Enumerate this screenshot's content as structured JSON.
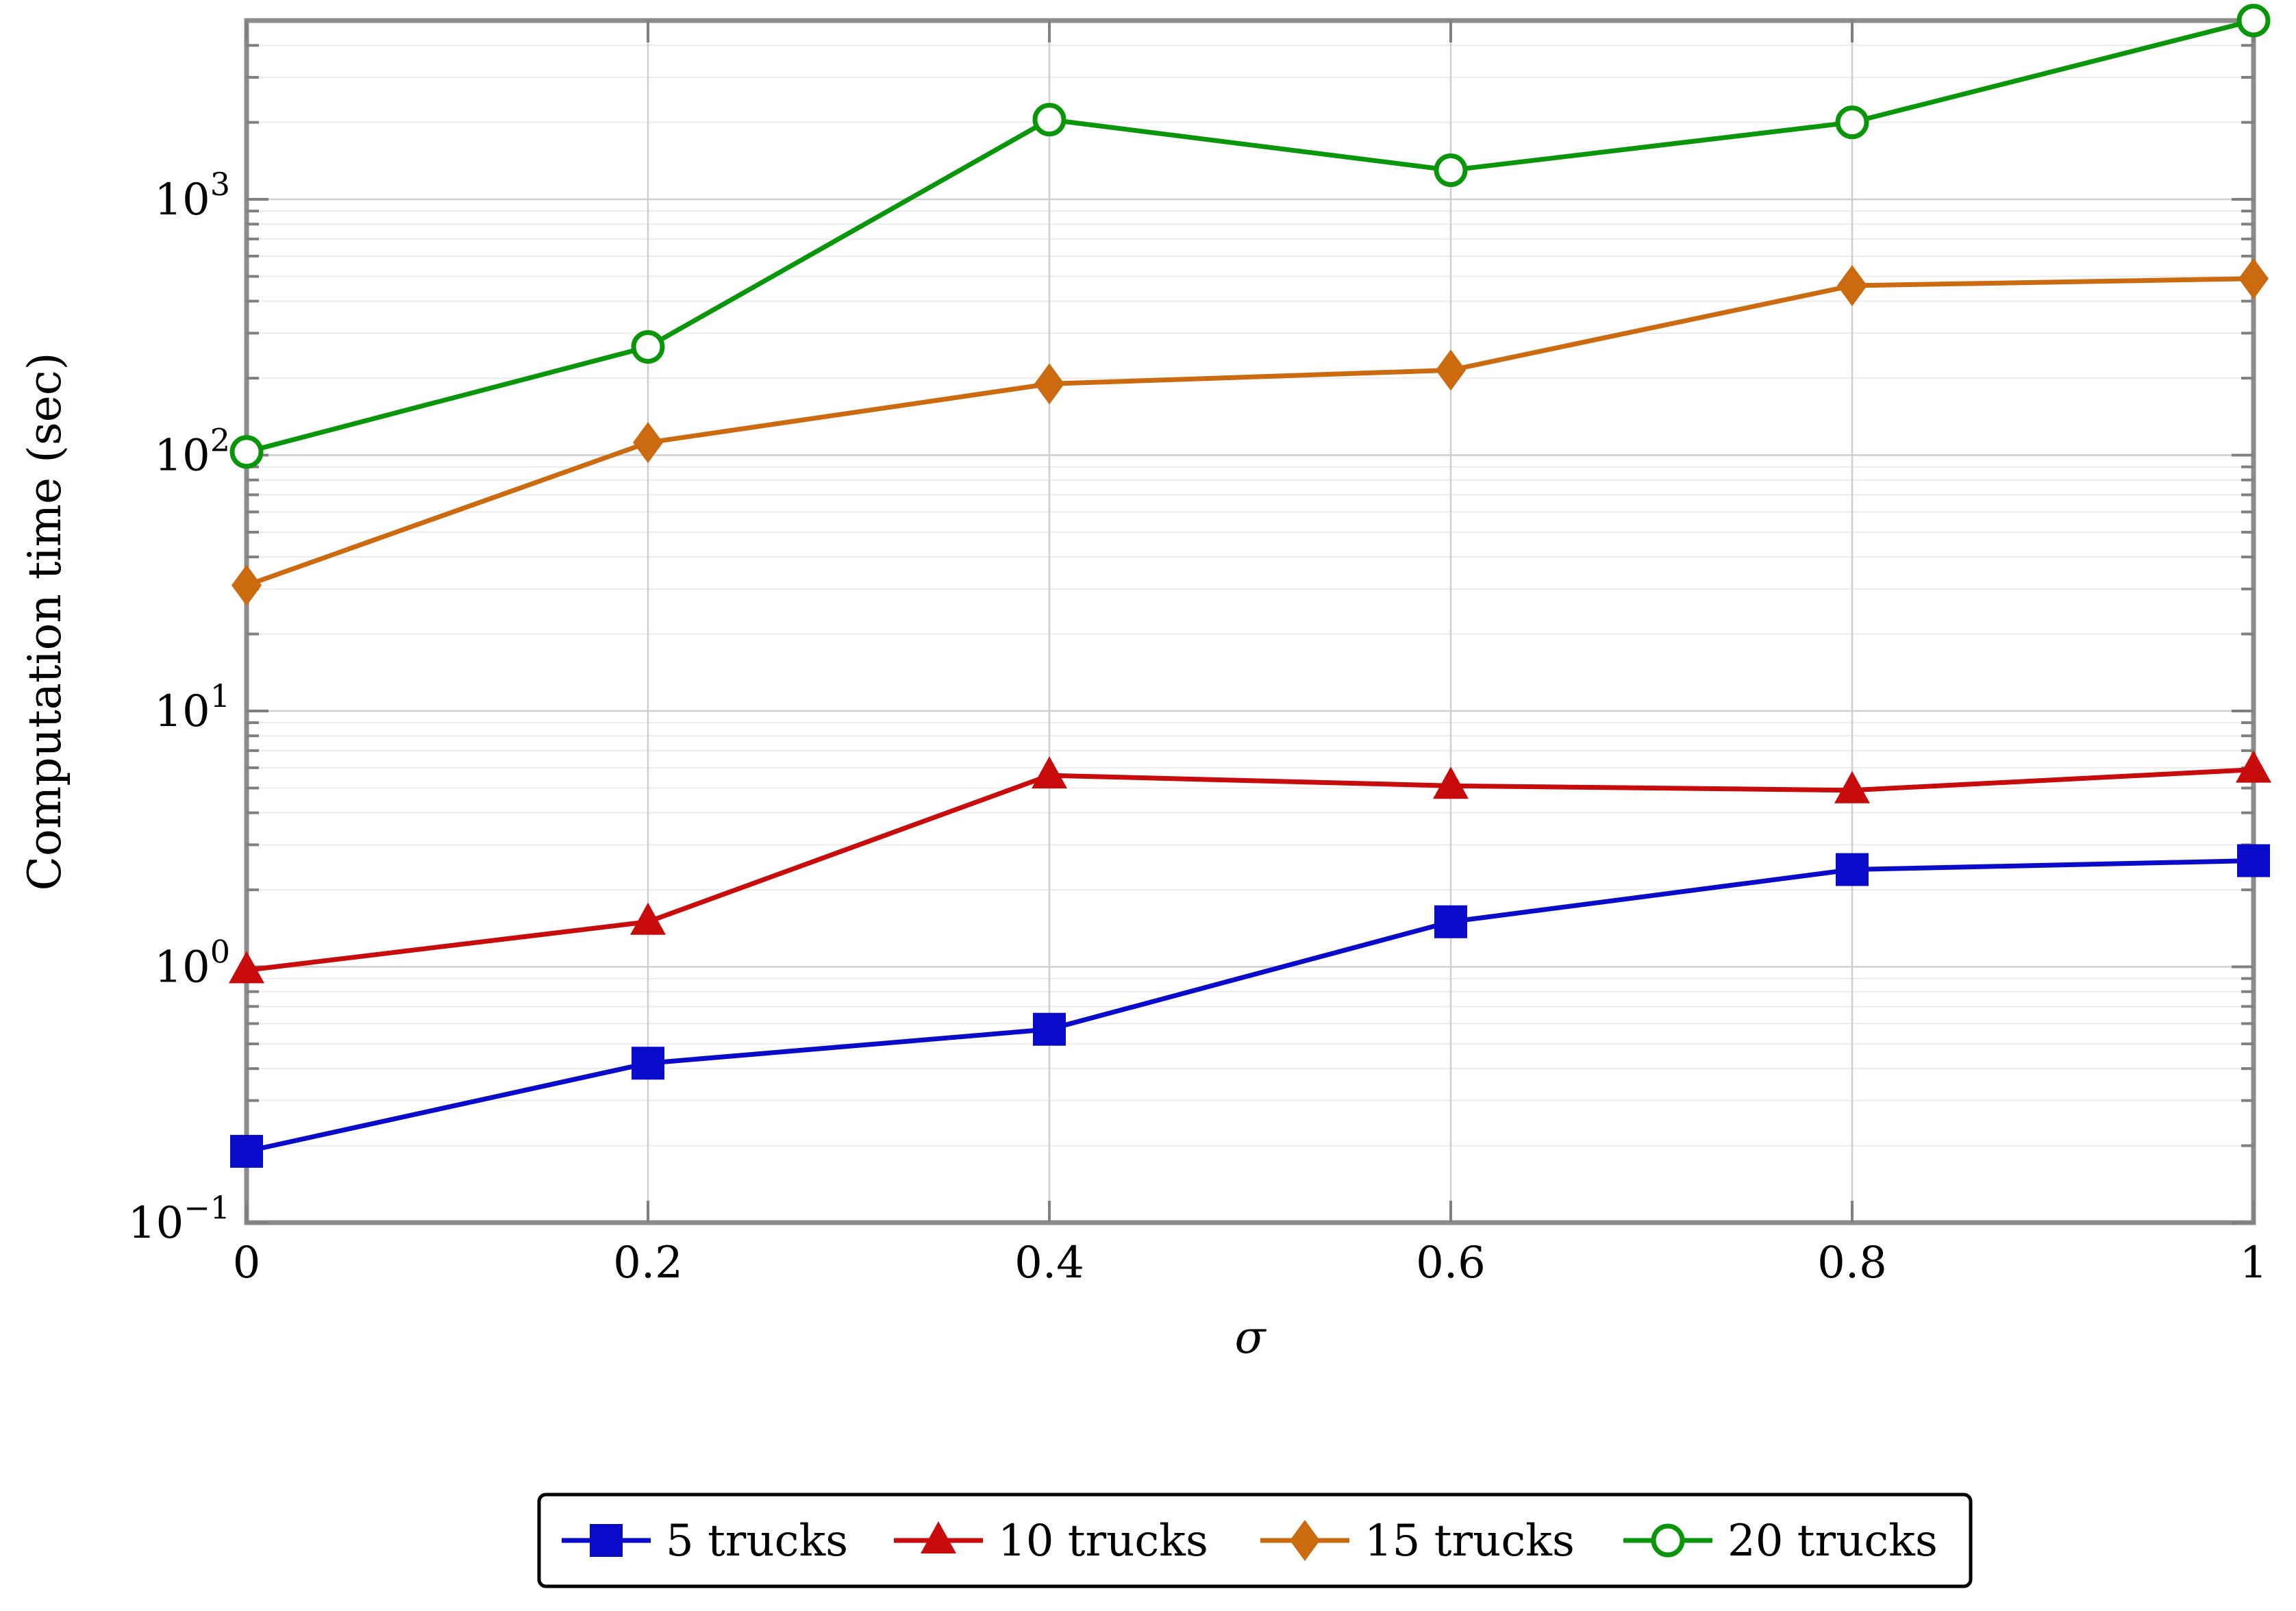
{
  "chart_data": {
    "type": "line",
    "title": "",
    "xlabel": "σ",
    "ylabel": "Computation time (sec)",
    "x": [
      0,
      0.2,
      0.4,
      0.6,
      0.8,
      1
    ],
    "xticks": [
      "0",
      "0.2",
      "0.4",
      "0.6",
      "0.8",
      "1"
    ],
    "xlim": [
      0,
      1
    ],
    "ylim": [
      0.1,
      5000
    ],
    "yscale": "log",
    "yticks": [
      {
        "value": 0.1,
        "base": "10",
        "exp": "−1"
      },
      {
        "value": 1,
        "base": "10",
        "exp": "0"
      },
      {
        "value": 10,
        "base": "10",
        "exp": "1"
      },
      {
        "value": 100,
        "base": "10",
        "exp": "2"
      },
      {
        "value": 1000,
        "base": "10",
        "exp": "3"
      }
    ],
    "grid": true,
    "legend_position": "bottom-center",
    "series": [
      {
        "name": "5 trucks",
        "color": "#0a0acb",
        "marker": "square",
        "values": [
          0.19,
          0.42,
          0.57,
          1.5,
          2.4,
          2.6
        ]
      },
      {
        "name": "10 trucks",
        "color": "#c80b0b",
        "marker": "triangle",
        "values": [
          0.97,
          1.5,
          5.6,
          5.1,
          4.9,
          5.9
        ]
      },
      {
        "name": "15 trucks",
        "color": "#cc6a10",
        "marker": "diamond",
        "values": [
          31,
          112,
          190,
          215,
          460,
          490
        ]
      },
      {
        "name": "20 trucks",
        "color": "#0a960a",
        "marker": "circle",
        "values": [
          103,
          265,
          2050,
          1300,
          2000,
          5000
        ]
      }
    ]
  }
}
